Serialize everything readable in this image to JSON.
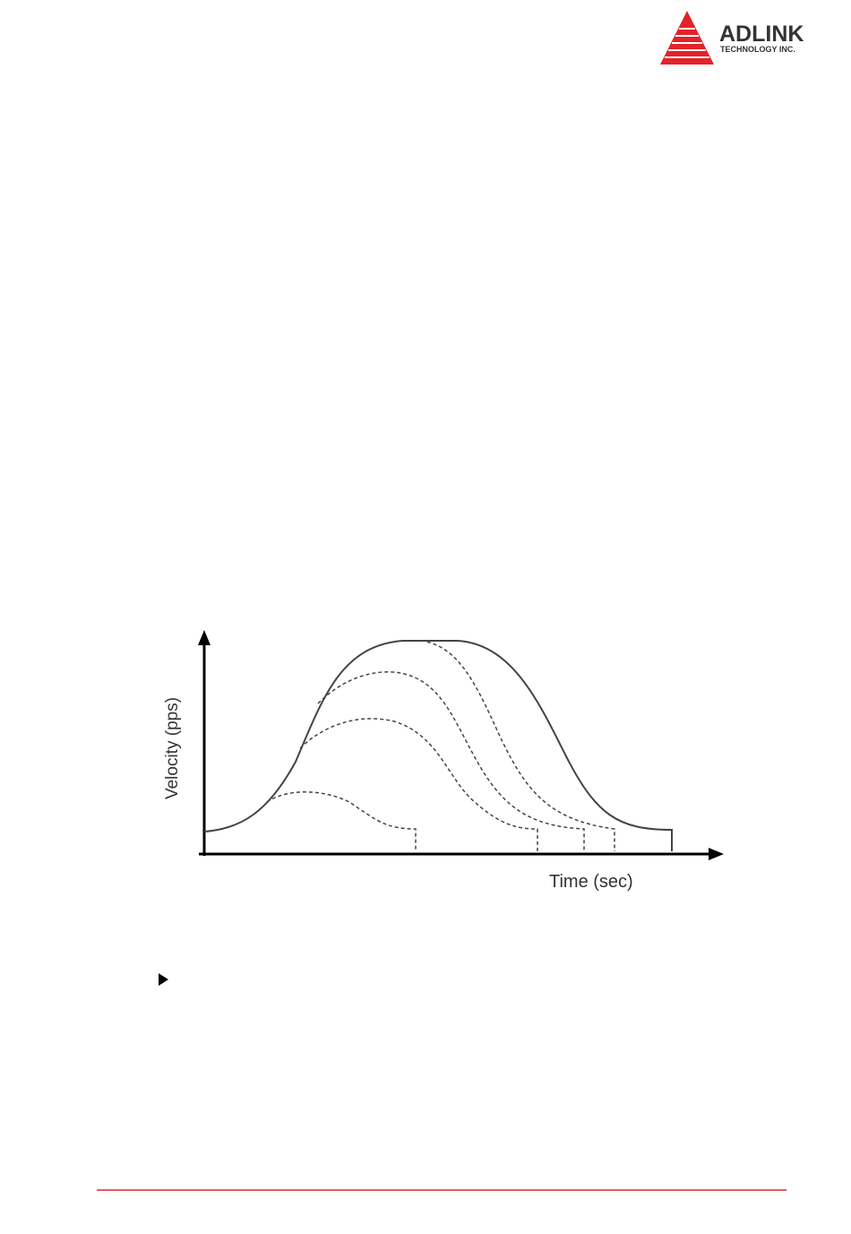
{
  "header": {
    "logo_name": "ADLINK",
    "logo_sub": "TECHNOLOGY INC."
  },
  "figure": {
    "y_axis_label": "Velocity (pps)",
    "x_axis_label": "Time (sec)"
  }
}
